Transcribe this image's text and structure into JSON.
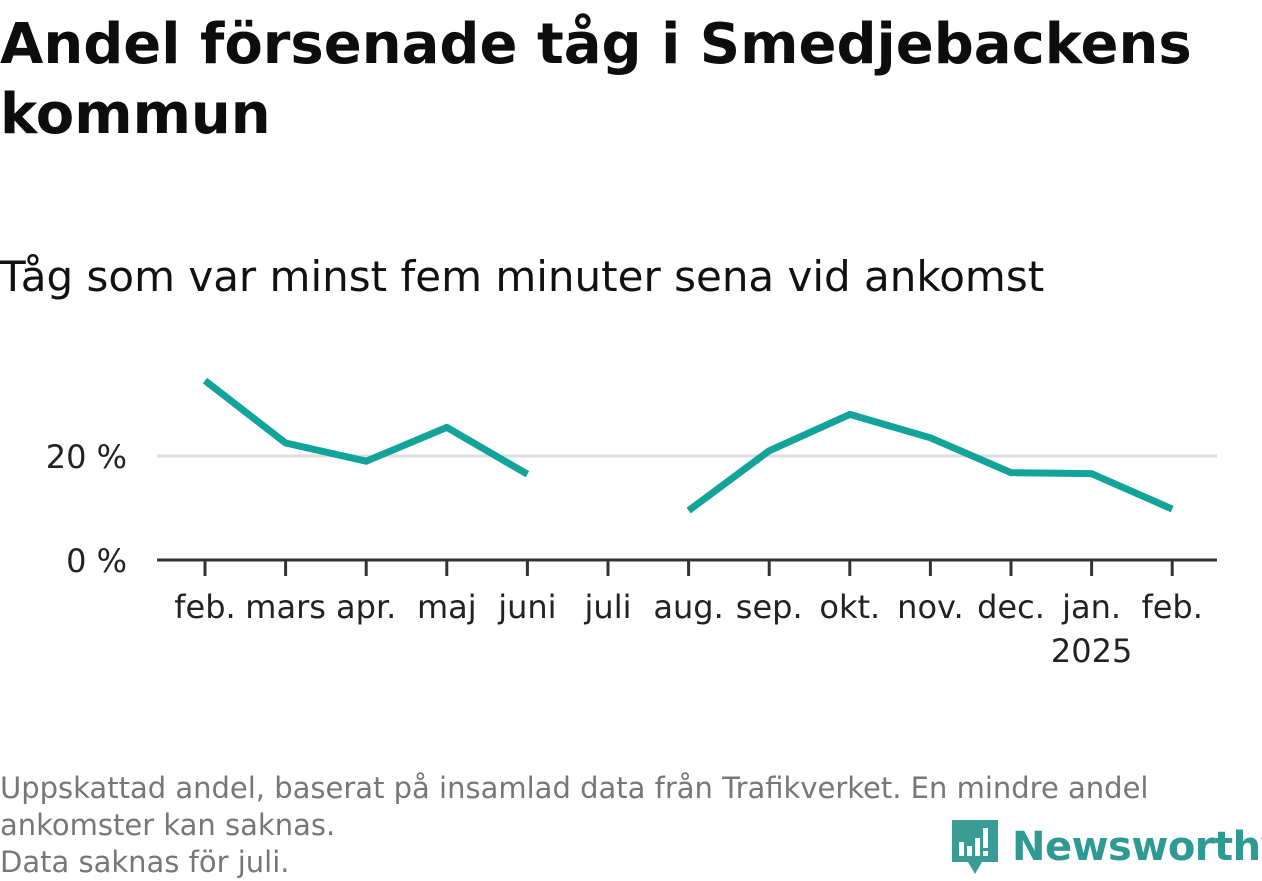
{
  "title": "Andel försenade tåg i Smedjebackens kommun",
  "subtitle": "Tåg som var minst fem minuter sena vid ankomst",
  "footnote": {
    "line1": "Uppskattad andel, baserat på insamlad data från Trafikverket. En mindre andel",
    "line2": "ankomster kan saknas.",
    "line3": "Data saknas för juli."
  },
  "brand": {
    "name": "Newsworthy",
    "icon": "newsworthy-logo-icon",
    "color": "#3a9c95"
  },
  "colors": {
    "line": "#12a39a",
    "grid": "#dddddd",
    "axis": "#333333"
  },
  "chart_data": {
    "type": "line",
    "categories": [
      "feb.",
      "mars",
      "apr.",
      "maj",
      "juni",
      "juli",
      "aug.",
      "sep.",
      "okt.",
      "nov.",
      "dec.",
      "jan.",
      "feb."
    ],
    "category_sublabels": [
      "",
      "",
      "",
      "",
      "",
      "",
      "",
      "",
      "",
      "",
      "",
      "2025",
      ""
    ],
    "series": [
      {
        "values": [
          34.5,
          22.5,
          19.0,
          25.5,
          16.5,
          null,
          9.5,
          21.0,
          28.0,
          23.5,
          16.8,
          16.6,
          9.8
        ]
      }
    ],
    "yticks": [
      0,
      20
    ],
    "ytick_labels": [
      "0 %",
      "20 %"
    ],
    "ylim": [
      0,
      38
    ],
    "grid": true,
    "legend": "none"
  }
}
